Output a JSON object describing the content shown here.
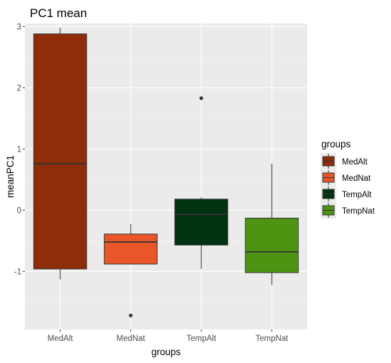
{
  "chart_data": {
    "type": "boxplot",
    "title": "PC1 mean",
    "xlabel": "groups",
    "ylabel": "meanPC1",
    "ylim": [
      -1.95,
      3.05
    ],
    "yticks": [
      -1,
      0,
      1,
      2,
      3
    ],
    "categories": [
      "MedAlt",
      "MedNat",
      "TempAlt",
      "TempNat"
    ],
    "colors": [
      "#8f2c0a",
      "#e8562a",
      "#013312",
      "#4e9311"
    ],
    "boxes": [
      {
        "category": "MedAlt",
        "q1": -0.96,
        "median": 0.76,
        "q3": 2.88,
        "whisker_low": -1.13,
        "whisker_high": 2.98,
        "outliers": []
      },
      {
        "category": "MedNat",
        "q1": -0.88,
        "median": -0.52,
        "q3": -0.39,
        "whisker_low": -0.88,
        "whisker_high": -0.23,
        "outliers": [
          -1.72
        ]
      },
      {
        "category": "TempAlt",
        "q1": -0.57,
        "median": -0.07,
        "q3": 0.18,
        "whisker_low": -0.96,
        "whisker_high": 0.21,
        "outliers": [
          1.83
        ]
      },
      {
        "category": "TempNat",
        "q1": -1.02,
        "median": -0.68,
        "q3": -0.13,
        "whisker_low": -1.22,
        "whisker_high": 0.76,
        "outliers": []
      }
    ],
    "grid": true,
    "legend": {
      "title": "groups",
      "position": "right",
      "entries": [
        "MedAlt",
        "MedNat",
        "TempAlt",
        "TempNat"
      ]
    }
  }
}
